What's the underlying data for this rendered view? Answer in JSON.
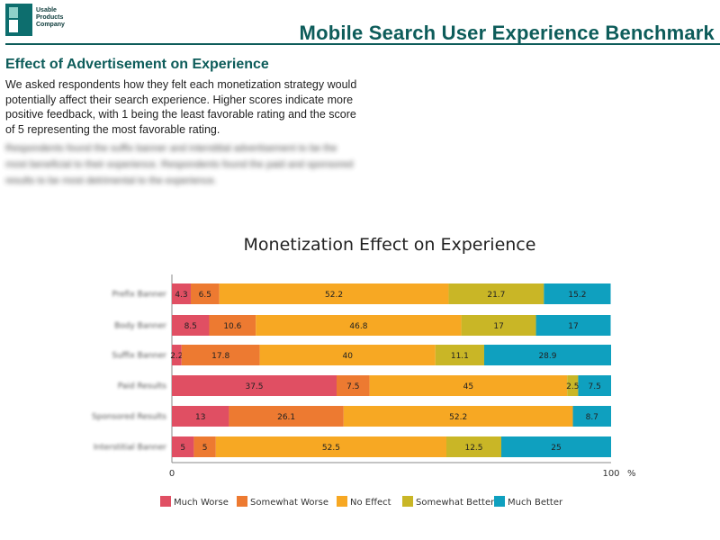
{
  "logo": {
    "lines": [
      "Usable",
      "Products",
      "Company"
    ]
  },
  "header": {
    "title": "Mobile Search User Experience Benchmark"
  },
  "section": {
    "title": "Effect of Advertisement on Experience",
    "intro": "We asked respondents how they felt each monetization strategy would potentially affect their search experience. Higher scores indicate more positive feedback, with 1 being the least favorable rating and the score of 5 representing the most favorable rating.",
    "blurred_text": "Respondents found the suffix banner and interstitial advertisement to be the most beneficial to their experience. Respondents found the paid and sponsored results to be most detrimental to the experience."
  },
  "colors": {
    "much_worse": "#e04f63",
    "somewhat_worse": "#ed7a31",
    "no_effect": "#f7a823",
    "somewhat_better": "#c9b626",
    "much_better": "#0fa0bf"
  },
  "chart_data": {
    "type": "bar",
    "orientation": "horizontal",
    "stacked": true,
    "title": "Monetization Effect on Experience",
    "categories": [
      "Prefix Banner",
      "Body Banner",
      "Suffix Banner",
      "Paid Results",
      "Sponsored Results",
      "Interstitial Banner"
    ],
    "series": [
      {
        "name": "Much Worse",
        "values": [
          4.3,
          8.5,
          2.2,
          37.5,
          13,
          5
        ],
        "labels": [
          "4.3",
          "8.5",
          "2.2",
          "37.5",
          "13",
          "5"
        ]
      },
      {
        "name": "Somewhat Worse",
        "values": [
          6.5,
          10.6,
          17.8,
          7.5,
          26.1,
          5
        ],
        "labels": [
          "6.5",
          "10.6",
          "17.8",
          "7.5",
          "26.1",
          "5"
        ]
      },
      {
        "name": "No Effect",
        "values": [
          52.2,
          46.8,
          40,
          45,
          52.2,
          52.5
        ],
        "labels": [
          "52.2",
          "46.8",
          "40",
          "45",
          "52.2",
          "52.5"
        ]
      },
      {
        "name": "Somewhat Better",
        "values": [
          21.7,
          17,
          11.1,
          2.5,
          0,
          12.5
        ],
        "labels": [
          "21.7",
          "17",
          "11.1",
          "2.5",
          "",
          "12.5"
        ]
      },
      {
        "name": "Much Better",
        "values": [
          15.2,
          17,
          28.9,
          7.5,
          8.7,
          25
        ],
        "labels": [
          "15.2",
          "17",
          "28.9",
          "7.5",
          "8.7",
          "25"
        ]
      }
    ],
    "x_ticks": [
      "0",
      "100"
    ],
    "x_unit": "%",
    "xlim": [
      0,
      100
    ],
    "legend_position": "bottom"
  }
}
